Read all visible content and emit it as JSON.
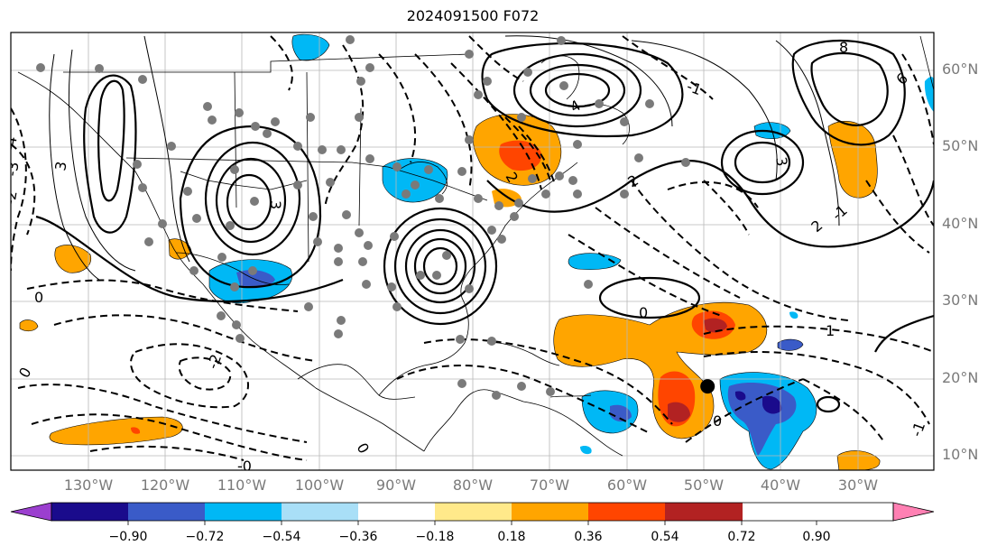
{
  "title": "2024091500 F072",
  "latitude_labels": [
    "60°N",
    "50°N",
    "40°N",
    "30°N",
    "20°N",
    "10°N"
  ],
  "longitude_labels": [
    "130°W",
    "120°W",
    "110°W",
    "100°W",
    "90°W",
    "80°W",
    "70°W",
    "60°W",
    "50°W",
    "40°W",
    "30°W"
  ],
  "contour_labels": [
    "0",
    "-0",
    "1",
    "-1",
    "2",
    "-2",
    "3",
    "-3",
    "4",
    "-4",
    "6",
    "8"
  ],
  "storm_marker": {
    "lon": -49.5,
    "lat": 19.0
  },
  "colorbar": {
    "colors": [
      "#9b3fcf",
      "#1a0b8c",
      "#3a5bc8",
      "#00b8f5",
      "#a9dff7",
      "#ffffff",
      "#ffe98a",
      "#ffa500",
      "#ff4500",
      "#b22222",
      "#ff80b3"
    ],
    "tick_labels": [
      "−0.90",
      "−0.72",
      "−0.54",
      "−0.36",
      "−0.18",
      "0.18",
      "0.36",
      "0.54",
      "0.72",
      "0.90"
    ]
  }
}
